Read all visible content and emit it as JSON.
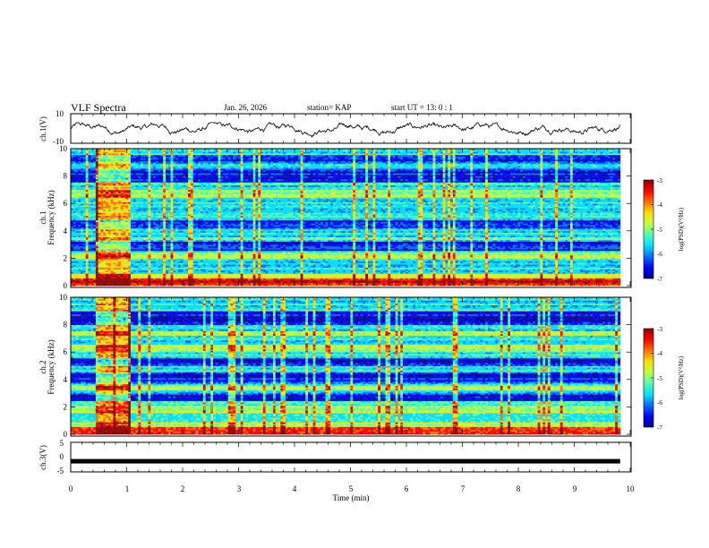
{
  "header": {
    "title": "VLF Spectra",
    "date": "Jan. 26, 2026",
    "station": "station= KAP",
    "start": "start UT =  13: 0  : 1"
  },
  "chart_data": [
    {
      "type": "line",
      "panel": "ch1-waveform",
      "ylabel": "ch.1(V)",
      "ylim": [
        -10,
        10
      ],
      "yticks": [
        "10",
        "-10"
      ],
      "xlim": [
        0,
        10
      ],
      "x_end_data": 9.82,
      "baseline": 0,
      "series": [
        {
          "name": "ch.1 amplitude",
          "amplitude_range": [
            -6,
            4
          ]
        }
      ]
    },
    {
      "type": "heatmap",
      "panel": "ch1-spectrogram",
      "ylabel": "ch.1",
      "ylabel2": "Frequency (kHz)",
      "ylim": [
        0,
        10
      ],
      "yticks": [
        "0",
        "2",
        "4",
        "6",
        "8",
        "10"
      ],
      "xlim": [
        0,
        10
      ],
      "x_end_data": 9.82,
      "intense_interval_min": [
        0.45,
        1.05
      ],
      "strong_band_khz": [
        [
          0,
          0.9
        ],
        [
          2.0,
          2.4
        ],
        [
          3.3,
          3.6
        ],
        [
          6.4,
          7.0
        ]
      ],
      "quiet_band_khz": [
        [
          2.6,
          3.2
        ],
        [
          4.2,
          4.8
        ],
        [
          7.6,
          8.5
        ],
        [
          9.0,
          9.6
        ]
      ],
      "colorbar": {
        "min": -7,
        "max": -3,
        "ticks": [
          "-3",
          "-4",
          "-5",
          "-6",
          "-7"
        ],
        "label": "log(PSD)(V²/Hz)"
      }
    },
    {
      "type": "heatmap",
      "panel": "ch2-spectrogram",
      "ylabel": "ch.2",
      "ylabel2": "Frequency (kHz)",
      "ylim": [
        0,
        10
      ],
      "yticks": [
        "0",
        "2",
        "4",
        "6",
        "8",
        "10"
      ],
      "xlim": [
        0,
        10
      ],
      "x_end_data": 9.82,
      "intense_interval_min": [
        0.45,
        1.05
      ],
      "strong_band_khz": [
        [
          0,
          0.9
        ],
        [
          1.6,
          2.1
        ],
        [
          3.2,
          3.5
        ],
        [
          6.0,
          6.5
        ],
        [
          7.2,
          7.6
        ]
      ],
      "quiet_band_khz": [
        [
          2.4,
          3.0
        ],
        [
          3.8,
          4.6
        ],
        [
          5.0,
          5.6
        ],
        [
          8.0,
          9.0
        ]
      ],
      "colorbar": {
        "min": -7,
        "max": -3,
        "ticks": [
          "-3",
          "-4",
          "-5",
          "-6",
          "-7"
        ],
        "label": "log(PSD)(V²/Hz)"
      }
    },
    {
      "type": "line",
      "panel": "ch3-waveform",
      "ylabel": "ch.3(V)",
      "ylim": [
        -5,
        5
      ],
      "yticks": [
        "5",
        "0",
        "-5"
      ],
      "xlim": [
        0,
        10
      ],
      "x_end_data": 9.82,
      "series": [
        {
          "name": "ch.3 level",
          "value": -1.4
        }
      ]
    }
  ],
  "xaxis": {
    "label": "Time (min)",
    "ticks": [
      "0",
      "1",
      "2",
      "3",
      "4",
      "5",
      "6",
      "7",
      "8",
      "9",
      "10"
    ]
  },
  "colors": {
    "cmap": [
      "#00008f",
      "#0000ff",
      "#006fff",
      "#00dfff",
      "#4fffaf",
      "#bfff3f",
      "#ffdf00",
      "#ff7000",
      "#ff0000",
      "#8f0000"
    ],
    "line": "#000000",
    "frame": "#000000"
  }
}
